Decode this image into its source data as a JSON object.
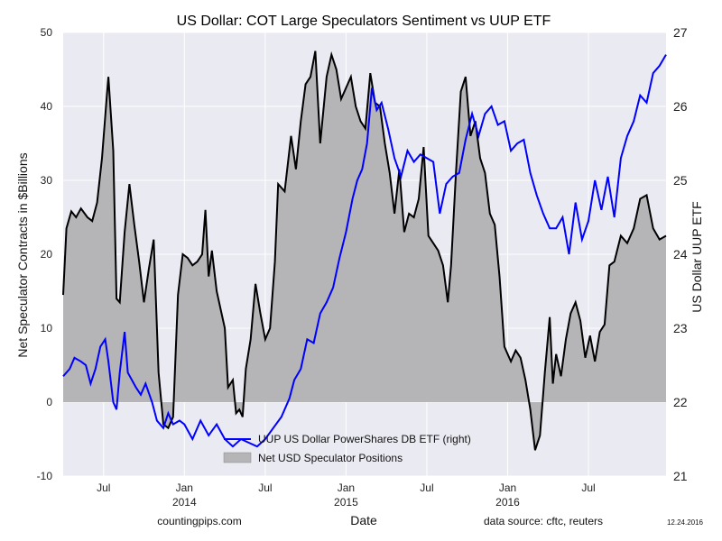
{
  "chart_data": {
    "type": "line",
    "title": "US Dollar: COT Large Speculators Sentiment vs UUP ETF",
    "xlabel": "Date",
    "ylabel_left": "Net Speculator Contracts in $Billions",
    "ylabel_right": "US Dollar UUP ETF",
    "ylim_left": [
      -10,
      50
    ],
    "ylim_right": [
      21,
      27
    ],
    "yticks_left": [
      "-10",
      "0",
      "10",
      "20",
      "30",
      "40",
      "50"
    ],
    "yticks_right": [
      "21",
      "22",
      "23",
      "24",
      "25",
      "26",
      "27"
    ],
    "xlim": [
      2013.25,
      2016.98
    ],
    "xticks": [
      {
        "x": 2013.5,
        "line1": "Jul",
        "line2": ""
      },
      {
        "x": 2014.0,
        "line1": "Jan",
        "line2": "2014"
      },
      {
        "x": 2014.5,
        "line1": "Jul",
        "line2": ""
      },
      {
        "x": 2015.0,
        "line1": "Jan",
        "line2": "2015"
      },
      {
        "x": 2015.5,
        "line1": "Jul",
        "line2": ""
      },
      {
        "x": 2016.0,
        "line1": "Jan",
        "line2": "2016"
      },
      {
        "x": 2016.5,
        "line1": "Jul",
        "line2": ""
      }
    ],
    "grid": true,
    "legend_position": "bottom-center",
    "series": [
      {
        "name": "UUP US Dollar PowerShares DB ETF (right)",
        "axis": "right",
        "color": "#0000ff",
        "points": [
          [
            2013.25,
            22.35
          ],
          [
            2013.29,
            22.45
          ],
          [
            2013.32,
            22.6
          ],
          [
            2013.36,
            22.55
          ],
          [
            2013.39,
            22.5
          ],
          [
            2013.42,
            22.25
          ],
          [
            2013.45,
            22.45
          ],
          [
            2013.48,
            22.75
          ],
          [
            2013.51,
            22.85
          ],
          [
            2013.53,
            22.55
          ],
          [
            2013.56,
            22.0
          ],
          [
            2013.58,
            21.9
          ],
          [
            2013.6,
            22.4
          ],
          [
            2013.63,
            22.95
          ],
          [
            2013.65,
            22.4
          ],
          [
            2013.7,
            22.2
          ],
          [
            2013.73,
            22.1
          ],
          [
            2013.76,
            22.25
          ],
          [
            2013.8,
            22.0
          ],
          [
            2013.83,
            21.75
          ],
          [
            2013.87,
            21.65
          ],
          [
            2013.9,
            21.85
          ],
          [
            2013.93,
            21.7
          ],
          [
            2013.97,
            21.75
          ],
          [
            2014.0,
            21.7
          ],
          [
            2014.05,
            21.5
          ],
          [
            2014.1,
            21.75
          ],
          [
            2014.15,
            21.55
          ],
          [
            2014.2,
            21.7
          ],
          [
            2014.25,
            21.5
          ],
          [
            2014.3,
            21.4
          ],
          [
            2014.35,
            21.5
          ],
          [
            2014.4,
            21.45
          ],
          [
            2014.45,
            21.4
          ],
          [
            2014.5,
            21.5
          ],
          [
            2014.55,
            21.65
          ],
          [
            2014.6,
            21.8
          ],
          [
            2014.65,
            22.05
          ],
          [
            2014.68,
            22.3
          ],
          [
            2014.72,
            22.45
          ],
          [
            2014.76,
            22.85
          ],
          [
            2014.8,
            22.8
          ],
          [
            2014.84,
            23.2
          ],
          [
            2014.88,
            23.35
          ],
          [
            2014.92,
            23.55
          ],
          [
            2014.96,
            23.95
          ],
          [
            2015.0,
            24.3
          ],
          [
            2015.04,
            24.75
          ],
          [
            2015.07,
            25.0
          ],
          [
            2015.1,
            25.15
          ],
          [
            2015.13,
            25.5
          ],
          [
            2015.16,
            26.25
          ],
          [
            2015.19,
            25.95
          ],
          [
            2015.22,
            26.05
          ],
          [
            2015.26,
            25.7
          ],
          [
            2015.3,
            25.3
          ],
          [
            2015.34,
            25.05
          ],
          [
            2015.38,
            25.4
          ],
          [
            2015.42,
            25.25
          ],
          [
            2015.46,
            25.35
          ],
          [
            2015.5,
            25.3
          ],
          [
            2015.54,
            25.25
          ],
          [
            2015.58,
            24.55
          ],
          [
            2015.62,
            24.95
          ],
          [
            2015.66,
            25.05
          ],
          [
            2015.7,
            25.1
          ],
          [
            2015.74,
            25.55
          ],
          [
            2015.78,
            25.9
          ],
          [
            2015.82,
            25.6
          ],
          [
            2015.86,
            25.9
          ],
          [
            2015.9,
            26.0
          ],
          [
            2015.94,
            25.75
          ],
          [
            2015.98,
            25.8
          ],
          [
            2016.02,
            25.4
          ],
          [
            2016.06,
            25.5
          ],
          [
            2016.1,
            25.55
          ],
          [
            2016.14,
            25.1
          ],
          [
            2016.18,
            24.8
          ],
          [
            2016.22,
            24.55
          ],
          [
            2016.26,
            24.35
          ],
          [
            2016.3,
            24.35
          ],
          [
            2016.34,
            24.5
          ],
          [
            2016.38,
            24.0
          ],
          [
            2016.42,
            24.7
          ],
          [
            2016.46,
            24.2
          ],
          [
            2016.5,
            24.45
          ],
          [
            2016.54,
            25.0
          ],
          [
            2016.58,
            24.6
          ],
          [
            2016.62,
            25.05
          ],
          [
            2016.66,
            24.5
          ],
          [
            2016.7,
            25.3
          ],
          [
            2016.74,
            25.6
          ],
          [
            2016.78,
            25.8
          ],
          [
            2016.82,
            26.15
          ],
          [
            2016.86,
            26.05
          ],
          [
            2016.9,
            26.45
          ],
          [
            2016.94,
            26.55
          ],
          [
            2016.98,
            26.7
          ]
        ]
      },
      {
        "name": "Net USD Speculator Positions",
        "axis": "left",
        "color": "#000000",
        "fill": "#b5b5b8",
        "points": [
          [
            2013.25,
            14.5
          ],
          [
            2013.27,
            23.5
          ],
          [
            2013.3,
            25.8
          ],
          [
            2013.33,
            25.0
          ],
          [
            2013.36,
            26.2
          ],
          [
            2013.4,
            25.0
          ],
          [
            2013.43,
            24.5
          ],
          [
            2013.46,
            27.0
          ],
          [
            2013.49,
            33.0
          ],
          [
            2013.52,
            41.5
          ],
          [
            2013.53,
            44.0
          ],
          [
            2013.56,
            34.0
          ],
          [
            2013.58,
            14.0
          ],
          [
            2013.6,
            13.5
          ],
          [
            2013.63,
            23.0
          ],
          [
            2013.66,
            29.5
          ],
          [
            2013.69,
            24.0
          ],
          [
            2013.72,
            19.0
          ],
          [
            2013.75,
            13.5
          ],
          [
            2013.78,
            18.0
          ],
          [
            2013.81,
            22.0
          ],
          [
            2013.84,
            4.0
          ],
          [
            2013.87,
            -3.0
          ],
          [
            2013.9,
            -3.5
          ],
          [
            2013.93,
            -2.0
          ],
          [
            2013.96,
            14.5
          ],
          [
            2013.99,
            20.0
          ],
          [
            2014.02,
            19.5
          ],
          [
            2014.05,
            18.5
          ],
          [
            2014.08,
            19.0
          ],
          [
            2014.11,
            20.0
          ],
          [
            2014.13,
            26.0
          ],
          [
            2014.15,
            17.0
          ],
          [
            2014.17,
            20.5
          ],
          [
            2014.2,
            15.0
          ],
          [
            2014.23,
            12.0
          ],
          [
            2014.25,
            10.0
          ],
          [
            2014.27,
            2.0
          ],
          [
            2014.3,
            3.0
          ],
          [
            2014.32,
            -1.5
          ],
          [
            2014.34,
            -1.0
          ],
          [
            2014.36,
            -2.0
          ],
          [
            2014.38,
            4.5
          ],
          [
            2014.41,
            8.5
          ],
          [
            2014.44,
            16.0
          ],
          [
            2014.47,
            12.0
          ],
          [
            2014.5,
            8.5
          ],
          [
            2014.53,
            10.0
          ],
          [
            2014.56,
            19.0
          ],
          [
            2014.58,
            29.5
          ],
          [
            2014.62,
            28.5
          ],
          [
            2014.66,
            36.0
          ],
          [
            2014.69,
            31.5
          ],
          [
            2014.72,
            38.0
          ],
          [
            2014.75,
            43.0
          ],
          [
            2014.78,
            44.0
          ],
          [
            2014.81,
            47.5
          ],
          [
            2014.84,
            35.0
          ],
          [
            2014.88,
            44.0
          ],
          [
            2014.91,
            47.0
          ],
          [
            2014.94,
            45.0
          ],
          [
            2014.97,
            41.0
          ],
          [
            2015.0,
            42.5
          ],
          [
            2015.03,
            44.0
          ],
          [
            2015.06,
            40.0
          ],
          [
            2015.09,
            38.0
          ],
          [
            2015.12,
            37.0
          ],
          [
            2015.15,
            44.5
          ],
          [
            2015.18,
            40.5
          ],
          [
            2015.21,
            40.0
          ],
          [
            2015.24,
            35.0
          ],
          [
            2015.27,
            31.0
          ],
          [
            2015.3,
            25.5
          ],
          [
            2015.33,
            31.5
          ],
          [
            2015.36,
            23.0
          ],
          [
            2015.39,
            25.5
          ],
          [
            2015.42,
            25.0
          ],
          [
            2015.45,
            27.5
          ],
          [
            2015.48,
            34.5
          ],
          [
            2015.51,
            22.5
          ],
          [
            2015.54,
            21.5
          ],
          [
            2015.57,
            20.5
          ],
          [
            2015.6,
            18.5
          ],
          [
            2015.63,
            13.5
          ],
          [
            2015.65,
            18.5
          ],
          [
            2015.68,
            31.0
          ],
          [
            2015.71,
            42.0
          ],
          [
            2015.74,
            44.0
          ],
          [
            2015.77,
            36.0
          ],
          [
            2015.8,
            38.0
          ],
          [
            2015.83,
            33.0
          ],
          [
            2015.86,
            31.0
          ],
          [
            2015.89,
            25.5
          ],
          [
            2015.92,
            24.0
          ],
          [
            2015.95,
            17.0
          ],
          [
            2015.98,
            7.5
          ],
          [
            2016.02,
            5.5
          ],
          [
            2016.05,
            7.0
          ],
          [
            2016.08,
            6.0
          ],
          [
            2016.11,
            3.0
          ],
          [
            2016.14,
            -1.0
          ],
          [
            2016.17,
            -6.5
          ],
          [
            2016.2,
            -4.5
          ],
          [
            2016.23,
            4.0
          ],
          [
            2016.26,
            11.5
          ],
          [
            2016.28,
            2.5
          ],
          [
            2016.3,
            6.5
          ],
          [
            2016.33,
            3.5
          ],
          [
            2016.36,
            8.5
          ],
          [
            2016.39,
            12.0
          ],
          [
            2016.42,
            13.5
          ],
          [
            2016.45,
            11.0
          ],
          [
            2016.48,
            6.0
          ],
          [
            2016.51,
            9.0
          ],
          [
            2016.54,
            5.5
          ],
          [
            2016.57,
            9.5
          ],
          [
            2016.6,
            10.5
          ],
          [
            2016.63,
            18.5
          ],
          [
            2016.66,
            19.0
          ],
          [
            2016.7,
            22.5
          ],
          [
            2016.74,
            21.5
          ],
          [
            2016.78,
            23.5
          ],
          [
            2016.82,
            27.5
          ],
          [
            2016.86,
            28.0
          ],
          [
            2016.9,
            23.5
          ],
          [
            2016.94,
            22.0
          ],
          [
            2016.98,
            22.5
          ]
        ]
      }
    ]
  },
  "footer": {
    "left": "countingpips.com",
    "right": "data source: cftc, reuters",
    "date": "12.24.2016"
  }
}
